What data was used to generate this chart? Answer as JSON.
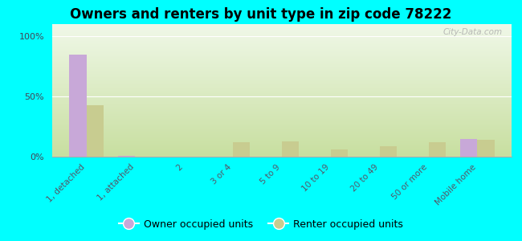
{
  "title": "Owners and renters by unit type in zip code 78222",
  "categories": [
    "1, detached",
    "1, attached",
    "2",
    "3 or 4",
    "5 to 9",
    "10 to 19",
    "20 to 49",
    "50 or more",
    "Mobile home"
  ],
  "owner_values": [
    85,
    1,
    0,
    0,
    0,
    0,
    0,
    0,
    15
  ],
  "renter_values": [
    43,
    0,
    0,
    12,
    13,
    6,
    9,
    12,
    14
  ],
  "owner_color": "#c8a8d8",
  "renter_color": "#c8cc90",
  "background_color": "#00ffff",
  "gradient_top": "#c8dfa0",
  "gradient_bottom": "#f0f8e8",
  "yticks": [
    0,
    50,
    100
  ],
  "ylim": [
    0,
    110
  ],
  "watermark": "City-Data.com",
  "legend_owner": "Owner occupied units",
  "legend_renter": "Renter occupied units",
  "bar_width": 0.35
}
